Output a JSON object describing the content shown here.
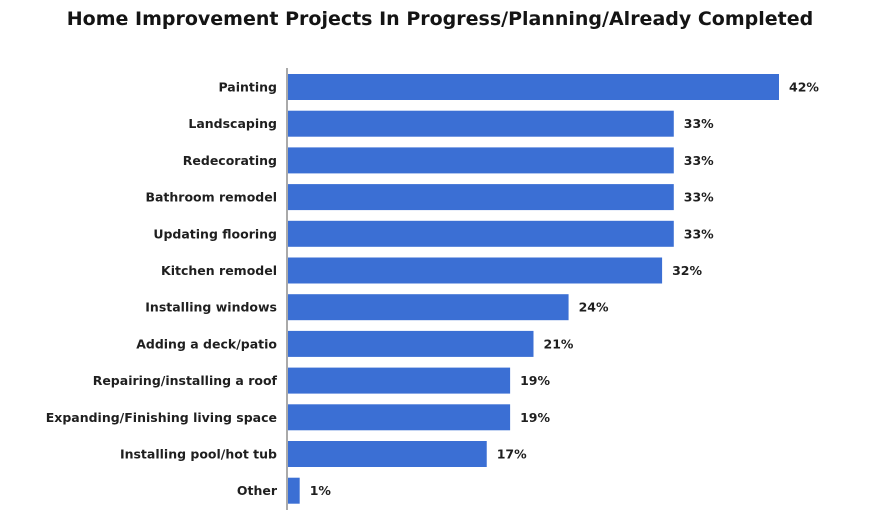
{
  "chart_data": {
    "type": "bar",
    "orientation": "horizontal",
    "title": "Home Improvement Projects In Progress/Planning/Already Completed",
    "categories": [
      "Painting",
      "Landscaping",
      "Redecorating",
      "Bathroom remodel",
      "Updating flooring",
      "Kitchen remodel",
      "Installing windows",
      "Adding a deck/patio",
      "Repairing/installing a roof",
      "Expanding/Finishing living space",
      "Installing pool/hot tub",
      "Other"
    ],
    "values": [
      42,
      33,
      33,
      33,
      33,
      32,
      24,
      21,
      19,
      19,
      17,
      1
    ],
    "value_labels": [
      "42%",
      "33%",
      "33%",
      "33%",
      "33%",
      "32%",
      "24%",
      "21%",
      "19%",
      "19%",
      "17%",
      "1%"
    ],
    "xlim": [
      0,
      42
    ],
    "grid": false,
    "bar_color": "#3b6fd4"
  }
}
